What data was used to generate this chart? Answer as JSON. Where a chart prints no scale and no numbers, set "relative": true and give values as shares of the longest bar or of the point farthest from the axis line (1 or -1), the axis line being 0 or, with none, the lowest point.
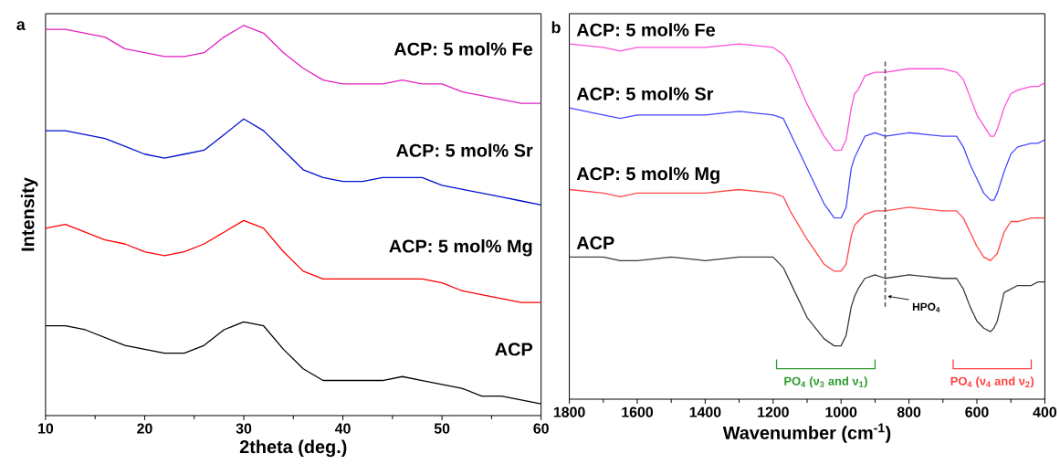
{
  "chart_data": [
    {
      "type": "line",
      "relative": true,
      "tick_labels": "x",
      "xlabel": "2theta (deg.)",
      "ylabel": "Intensity",
      "annotations": [
        "a"
      ],
      "xlim": [
        10,
        60
      ],
      "xticks": [
        10,
        {
          "value": 15,
          "label": null
        },
        20,
        {
          "value": 25,
          "label": null
        },
        30,
        {
          "value": 35,
          "label": null
        },
        40,
        {
          "value": 45,
          "label": null
        },
        50,
        {
          "value": 55,
          "label": null
        },
        60
      ],
      "x": [
        10,
        12,
        14,
        16,
        18,
        20,
        22,
        24,
        26,
        28,
        30,
        32,
        34,
        36,
        38,
        40,
        42,
        44,
        46,
        48,
        50,
        52,
        54,
        56,
        58,
        60
      ],
      "series": [
        {
          "name": "ACP: 5 mol% Fe",
          "color": "#e020c0",
          "values": [
            0.99,
            0.99,
            0.98,
            0.97,
            0.94,
            0.93,
            0.92,
            0.92,
            0.93,
            0.97,
            1.0,
            0.98,
            0.93,
            0.89,
            0.86,
            0.85,
            0.85,
            0.85,
            0.86,
            0.85,
            0.85,
            0.83,
            0.82,
            0.81,
            0.8,
            0.8
          ]
        },
        {
          "name": "ACP: 5 mol% Sr",
          "color": "#0010d0",
          "values": [
            0.73,
            0.73,
            0.72,
            0.71,
            0.69,
            0.67,
            0.66,
            0.67,
            0.68,
            0.72,
            0.76,
            0.73,
            0.68,
            0.63,
            0.61,
            0.6,
            0.6,
            0.61,
            0.61,
            0.61,
            0.59,
            0.58,
            0.57,
            0.56,
            0.55,
            0.54
          ]
        },
        {
          "name": "ACP: 5 mol% Mg",
          "color": "#ff0000",
          "values": [
            0.48,
            0.49,
            0.47,
            0.45,
            0.44,
            0.42,
            0.41,
            0.42,
            0.44,
            0.47,
            0.5,
            0.48,
            0.42,
            0.37,
            0.35,
            0.35,
            0.35,
            0.35,
            0.35,
            0.35,
            0.34,
            0.32,
            0.31,
            0.3,
            0.29,
            0.29
          ]
        },
        {
          "name": "ACP",
          "color": "#000000",
          "values": [
            0.23,
            0.23,
            0.22,
            0.2,
            0.18,
            0.17,
            0.16,
            0.16,
            0.18,
            0.22,
            0.24,
            0.23,
            0.17,
            0.12,
            0.09,
            0.09,
            0.09,
            0.09,
            0.1,
            0.09,
            0.08,
            0.07,
            0.05,
            0.05,
            0.04,
            0.03
          ]
        }
      ]
    },
    {
      "type": "line",
      "relative": true,
      "tick_labels": "x",
      "xlabel": "Wavenumber (cm$^{-1}$)",
      "annotations": [
        "b",
        "PO$_{4}$ (ν$_{3}$ and ν$_{1}$)",
        "PO$_{4}$ (ν$_{4}$ and ν$_{2}$)"
      ],
      "xlim": [
        1800,
        400
      ],
      "xticks": [
        1800,
        {
          "value": 1700,
          "label": null
        },
        1600,
        {
          "value": 1500,
          "label": null
        },
        1400,
        {
          "value": 1300,
          "label": null
        },
        1200,
        {
          "value": 1100,
          "label": null
        },
        1000,
        {
          "value": 900,
          "label": null
        },
        800,
        {
          "value": 700,
          "label": null
        },
        600,
        {
          "value": 500,
          "label": null
        },
        400
      ],
      "x": [
        1800,
        1700,
        1650,
        1600,
        1500,
        1400,
        1300,
        1200,
        1170,
        1150,
        1100,
        1050,
        1020,
        1000,
        985,
        970,
        960,
        950,
        930,
        900,
        870,
        800,
        700,
        660,
        640,
        620,
        600,
        580,
        560,
        550,
        540,
        520,
        500,
        480,
        440,
        420,
        400
      ],
      "series": [
        {
          "name": "ACP: 5 mol% Fe",
          "color": "#ff50d8",
          "values": [
            1.0,
            0.99,
            0.98,
            0.99,
            0.99,
            0.99,
            1.0,
            0.99,
            0.97,
            0.94,
            0.83,
            0.74,
            0.7,
            0.7,
            0.73,
            0.82,
            0.86,
            0.87,
            0.91,
            0.92,
            0.92,
            0.93,
            0.93,
            0.92,
            0.9,
            0.85,
            0.8,
            0.77,
            0.74,
            0.74,
            0.76,
            0.82,
            0.86,
            0.87,
            0.88,
            0.88,
            0.89
          ]
        },
        {
          "name": "ACP: 5 mol% Sr",
          "color": "#4848ff",
          "values": [
            0.82,
            0.8,
            0.79,
            0.8,
            0.8,
            0.8,
            0.81,
            0.8,
            0.79,
            0.75,
            0.65,
            0.55,
            0.51,
            0.51,
            0.54,
            0.65,
            0.68,
            0.7,
            0.74,
            0.75,
            0.74,
            0.75,
            0.74,
            0.74,
            0.71,
            0.66,
            0.62,
            0.58,
            0.56,
            0.56,
            0.58,
            0.64,
            0.69,
            0.71,
            0.72,
            0.72,
            0.73
          ]
        },
        {
          "name": "ACP: 5 mol% Mg",
          "color": "#ff4848",
          "values": [
            0.59,
            0.58,
            0.57,
            0.58,
            0.58,
            0.58,
            0.59,
            0.58,
            0.57,
            0.53,
            0.45,
            0.38,
            0.36,
            0.36,
            0.38,
            0.46,
            0.49,
            0.5,
            0.52,
            0.53,
            0.53,
            0.54,
            0.53,
            0.53,
            0.51,
            0.47,
            0.43,
            0.4,
            0.39,
            0.4,
            0.41,
            0.47,
            0.5,
            0.5,
            0.51,
            0.51,
            0.51
          ]
        },
        {
          "name": "ACP",
          "color": "#3a3a3a",
          "values": [
            0.4,
            0.4,
            0.39,
            0.39,
            0.4,
            0.39,
            0.4,
            0.4,
            0.37,
            0.33,
            0.23,
            0.17,
            0.15,
            0.15,
            0.18,
            0.26,
            0.29,
            0.31,
            0.34,
            0.35,
            0.34,
            0.35,
            0.34,
            0.34,
            0.31,
            0.26,
            0.22,
            0.2,
            0.19,
            0.2,
            0.22,
            0.3,
            0.31,
            0.32,
            0.32,
            0.33,
            0.33
          ]
        }
      ],
      "ref_lines": [
        {
          "axis": "x",
          "value": 870,
          "label": "HPO$_{4}$",
          "color": "#555555",
          "line_style": "dashed"
        }
      ]
    }
  ]
}
